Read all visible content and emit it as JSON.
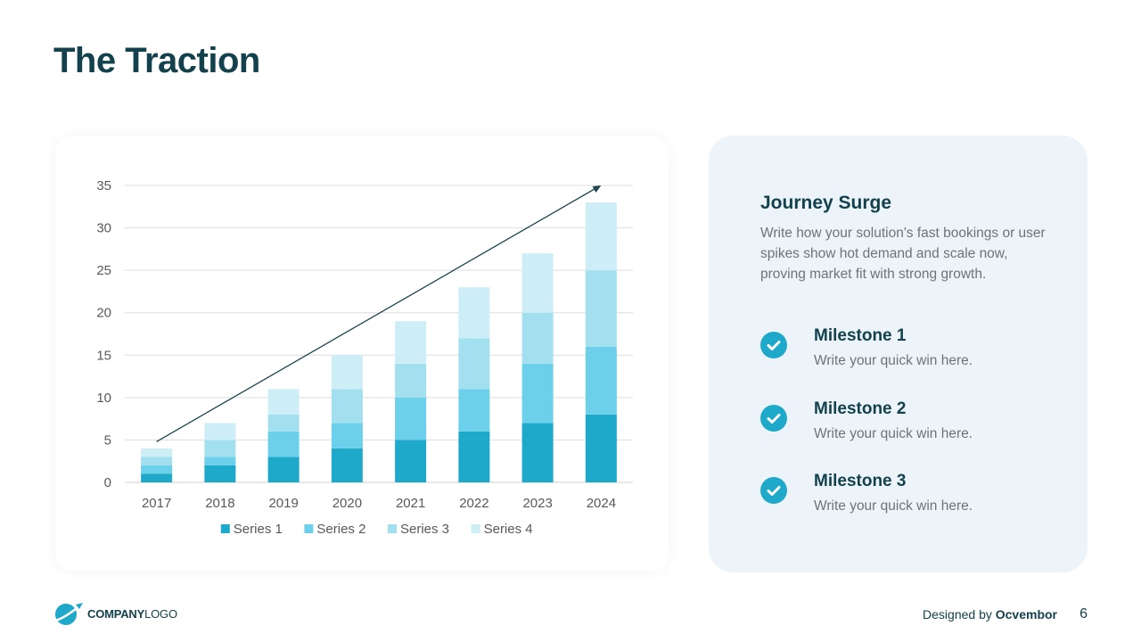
{
  "header": {
    "title": "The Traction"
  },
  "chart_data": {
    "type": "bar",
    "stacked": true,
    "categories": [
      "2017",
      "2018",
      "2019",
      "2020",
      "2021",
      "2022",
      "2023",
      "2024"
    ],
    "series": [
      {
        "name": "Series 1",
        "color": "#1ea9cb",
        "values": [
          1,
          2,
          3,
          4,
          5,
          6,
          7,
          8
        ]
      },
      {
        "name": "Series 2",
        "color": "#6dd0ea",
        "values": [
          1,
          1,
          3,
          3,
          5,
          5,
          7,
          8
        ]
      },
      {
        "name": "Series 3",
        "color": "#a3e0ef",
        "values": [
          1,
          2,
          2,
          4,
          4,
          6,
          6,
          9
        ]
      },
      {
        "name": "Series 4",
        "color": "#cdeef7",
        "values": [
          1,
          2,
          3,
          4,
          5,
          6,
          7,
          8
        ]
      }
    ],
    "ylim": [
      0,
      35
    ],
    "yticks": [
      "0",
      "5",
      "10",
      "15",
      "20",
      "25",
      "30",
      "35"
    ],
    "grid": true,
    "legend": "bottom",
    "trend_arrow": {
      "from": [
        2017,
        4.8
      ],
      "to": [
        2024,
        35
      ],
      "color": "#1d4650"
    },
    "title": "",
    "xlabel": "",
    "ylabel": ""
  },
  "side_panel": {
    "title": "Journey Surge",
    "description": "Write how your solution's fast bookings or user spikes show hot demand and scale now, proving market fit with strong growth.",
    "milestones": [
      {
        "title": "Milestone 1",
        "text": "Write your quick win here.",
        "icon": "check-circle-icon"
      },
      {
        "title": "Milestone 2",
        "text": "Write your quick win here.",
        "icon": "check-circle-icon"
      },
      {
        "title": "Milestone 3",
        "text": "Write your quick win here.",
        "icon": "check-circle-icon"
      }
    ]
  },
  "footer": {
    "logo_bold": "COMPANY",
    "logo_light": "LOGO",
    "logo_icon": "globe-plane-icon",
    "credit_prefix": "Designed by",
    "credit_name": "Ocvembor",
    "page_number": "6"
  },
  "colors": {
    "accent": "#1ea9cb",
    "heading": "#13414d",
    "panel_bg": "#ecf3f9",
    "body_text": "#6c7479"
  }
}
